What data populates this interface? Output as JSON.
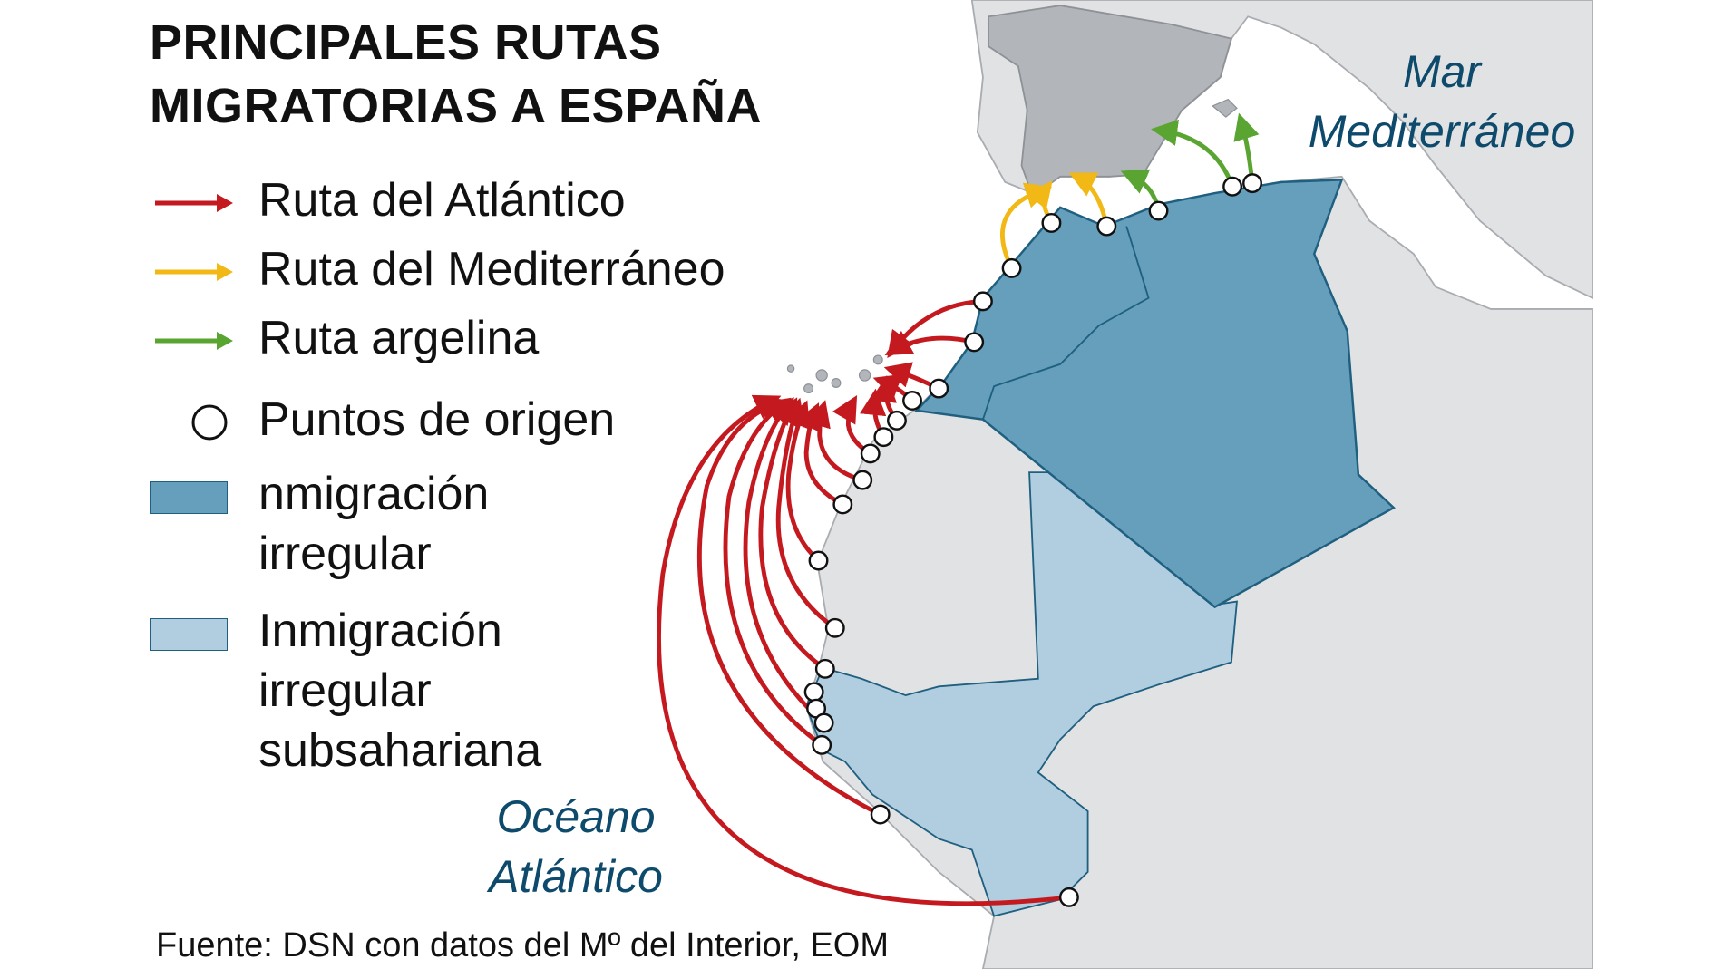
{
  "title": {
    "line1": "PRINCIPALES RUTAS",
    "line2": "MIGRATORIAS A ESPAÑA"
  },
  "legend": {
    "routes": [
      {
        "label": "Ruta del Atlántico",
        "color": "#c41a1f"
      },
      {
        "label": "Ruta del Mediterráneo",
        "color": "#f2b815"
      },
      {
        "label": "Ruta argelina",
        "color": "#5aa532"
      }
    ],
    "origin_points": {
      "label": "Puntos de origen",
      "icon": "circle-outline-icon"
    },
    "areas": [
      {
        "line1": "nmigración",
        "line2": "irregular",
        "color": "#659fbc"
      },
      {
        "line1": "Inmigración",
        "line2": "irregular",
        "line3": "subsahariana",
        "color": "#b1cde0"
      }
    ]
  },
  "labels": {
    "mediterranean": {
      "line1": "Mar",
      "line2": "Mediterráneo"
    },
    "atlantic": {
      "line1": "Océano",
      "line2": "Atlántico"
    }
  },
  "source": "Fuente: DSN con datos del Mº del Interior, EOM",
  "colors": {
    "spain": "#b2b5ba",
    "land": "#e1e2e4",
    "border": "#a9acb0",
    "north_africa": "#659fbc",
    "subsaharan": "#b1cde0",
    "outline": "#1f5f7f"
  }
}
